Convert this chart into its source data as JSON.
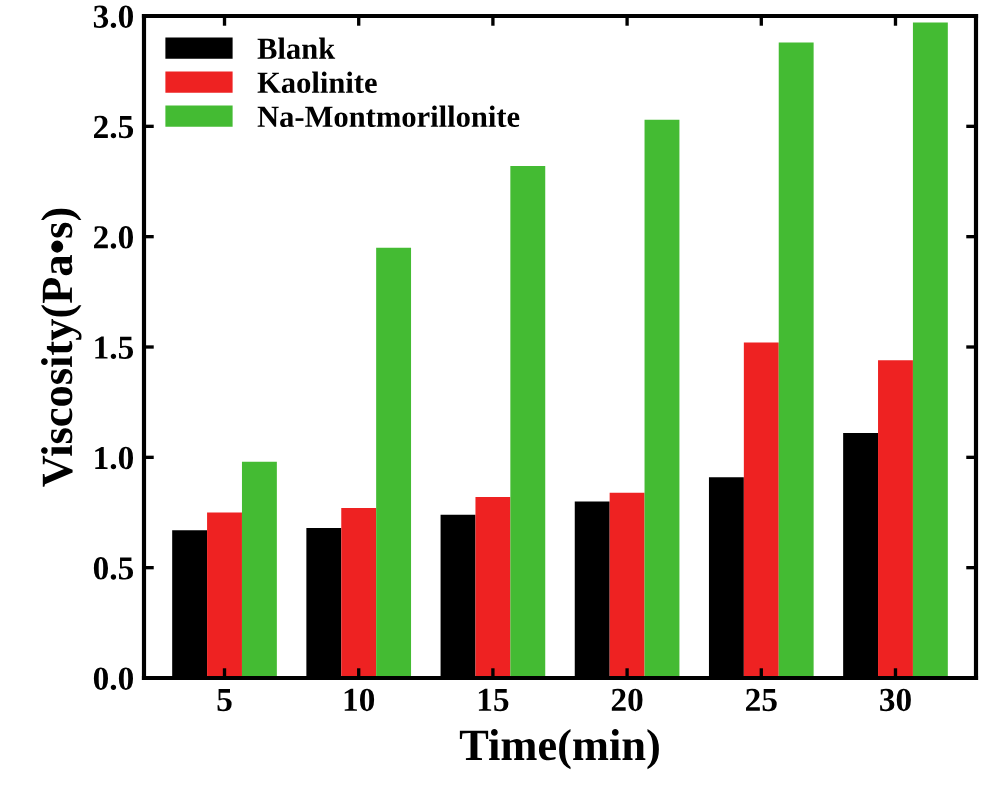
{
  "chart_data": {
    "type": "bar",
    "xlabel": "Time(min)",
    "ylabel": "Viscosity(Pa•s)",
    "categories": [
      "5",
      "10",
      "15",
      "20",
      "25",
      "30"
    ],
    "series": [
      {
        "name": "Blank",
        "color": "#000000",
        "values": [
          0.67,
          0.68,
          0.74,
          0.8,
          0.91,
          1.11
        ]
      },
      {
        "name": "Kaolinite",
        "color": "#ee2222",
        "values": [
          0.75,
          0.77,
          0.82,
          0.84,
          1.52,
          1.44
        ]
      },
      {
        "name": "Na-Montmorillonite",
        "color": "#44bb33",
        "values": [
          0.98,
          1.95,
          2.32,
          2.53,
          2.88,
          2.97
        ]
      }
    ],
    "ylim": [
      0,
      3.0
    ],
    "yticks": [
      {
        "value": 0,
        "label": "0.0"
      },
      0.5,
      {
        "value": 1,
        "label": "1.0"
      },
      1.5,
      {
        "value": 2,
        "label": "2.0"
      },
      2.5,
      {
        "value": 3,
        "label": "3.0"
      }
    ],
    "grid": false,
    "legend": "top left"
  }
}
